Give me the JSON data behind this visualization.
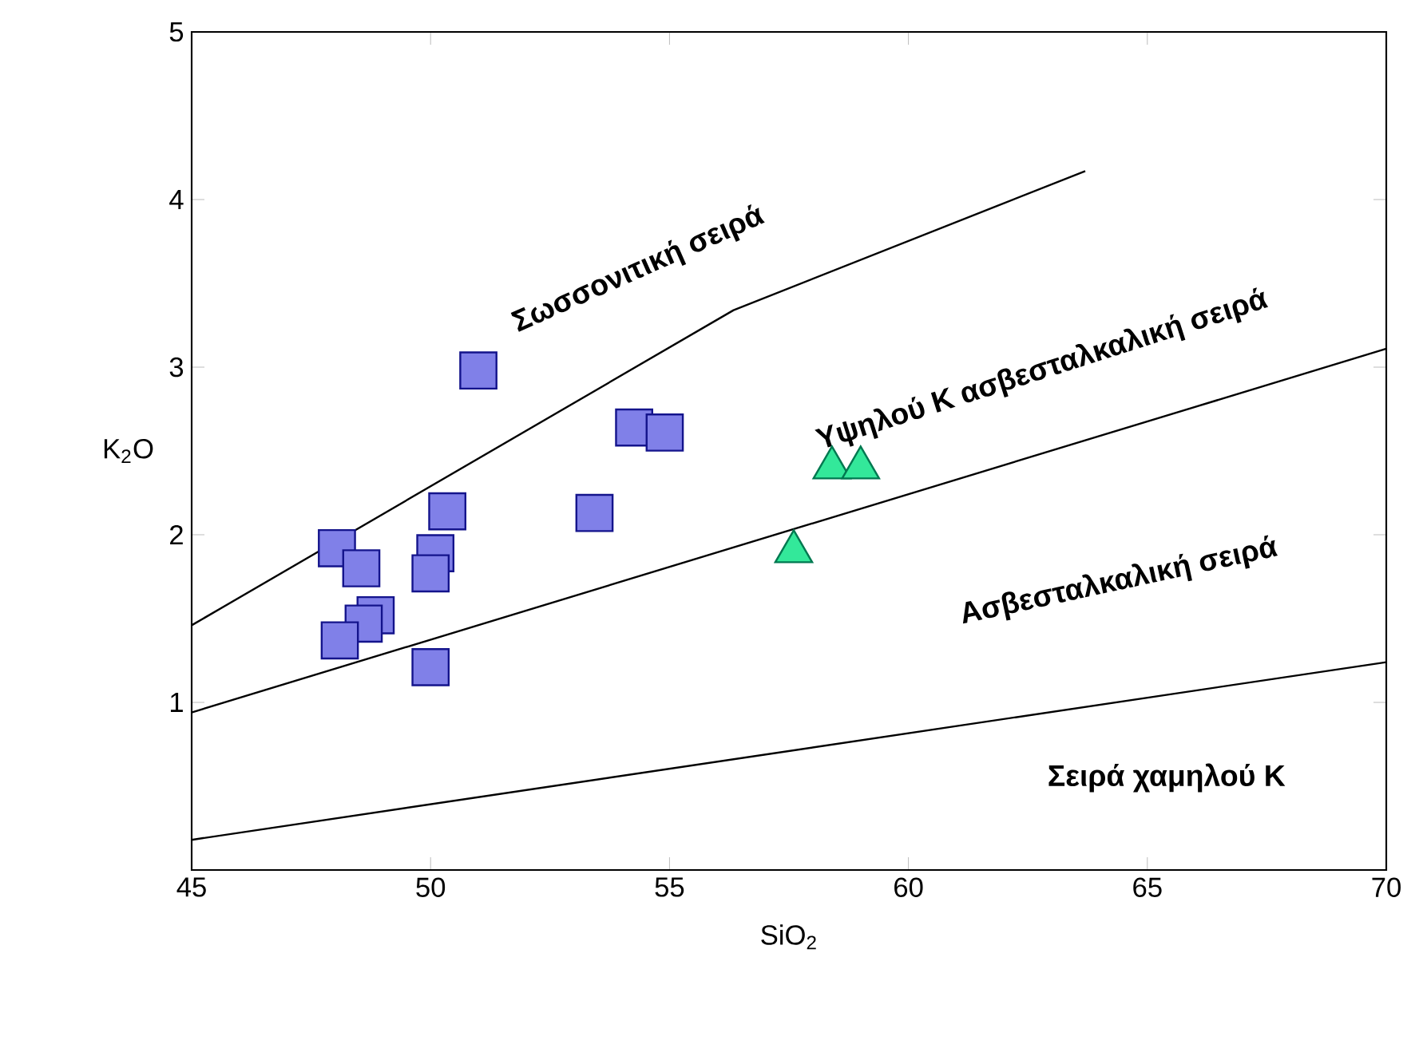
{
  "chart_data": {
    "type": "scatter",
    "xlabel": "SiO$_{2}$",
    "ylabel": "K$_{2}$O",
    "xlim": [
      45,
      70
    ],
    "ylim": [
      0,
      5
    ],
    "xticks": [
      45,
      50,
      55,
      60,
      65,
      70
    ],
    "yticks": [
      1,
      2,
      3,
      4,
      5
    ],
    "series": [
      {
        "type": "line",
        "color": "#000000",
        "marker": "none",
        "x": [
          45,
          56.34,
          63.7
        ],
        "values": [
          1.46,
          3.34,
          4.17
        ]
      },
      {
        "type": "line",
        "color": "#000000",
        "marker": "none",
        "x": [
          45,
          70
        ],
        "values": [
          0.94,
          3.11
        ]
      },
      {
        "type": "line",
        "color": "#000000",
        "marker": "none",
        "x": [
          45,
          70
        ],
        "values": [
          0.18,
          1.24
        ]
      },
      {
        "color": "#8080e8",
        "marker": "square",
        "x": [
          51.0,
          54.26,
          54.9,
          50.35,
          53.43,
          48.04,
          48.55,
          50.1,
          50.0,
          48.85,
          48.6,
          48.1,
          50.0
        ],
        "values": [
          2.98,
          2.64,
          2.61,
          2.14,
          2.13,
          1.92,
          1.8,
          1.89,
          1.77,
          1.52,
          1.47,
          1.37,
          1.21
        ]
      },
      {
        "color": "#33e89a",
        "marker": "triangle",
        "x": [
          58.4,
          59.0,
          57.6
        ],
        "values": [
          2.4,
          2.4,
          1.9
        ]
      }
    ],
    "annotations": [
      "Σωσσονιτική σειρά",
      "Υψηλού Κ ασβεσταλκαλική σειρά",
      "Ασβεσταλκαλική σειρά",
      "Σειρά χαμηλού Κ"
    ]
  }
}
